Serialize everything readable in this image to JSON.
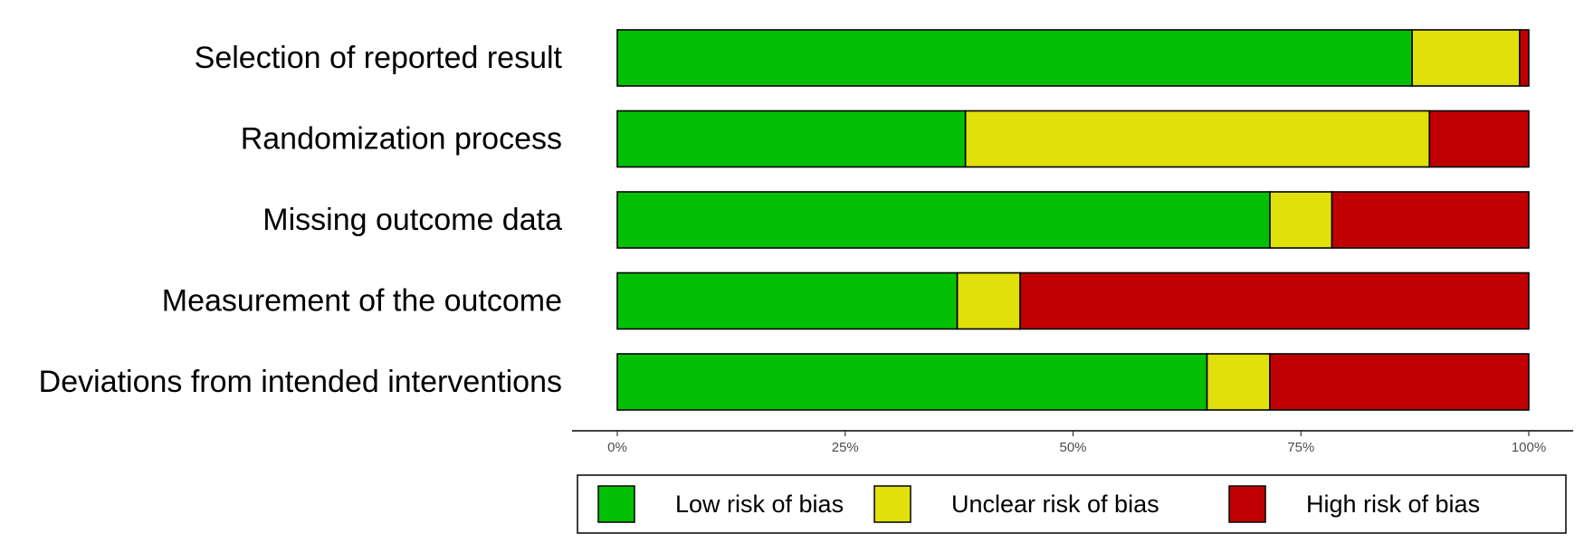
{
  "chart_data": {
    "type": "bar",
    "orientation": "horizontal",
    "stacked": true,
    "categories": [
      "Selection of reported result",
      "Randomization process",
      "Missing outcome data",
      "Measurement of the outcome",
      "Deviations from intended interventions"
    ],
    "series": [
      {
        "name": "Low risk of bias",
        "color": "#04c004",
        "values": [
          87.2,
          38.2,
          71.6,
          37.3,
          64.7
        ]
      },
      {
        "name": "Unclear risk of bias",
        "color": "#e0e00a",
        "values": [
          11.8,
          50.9,
          6.8,
          6.9,
          6.9
        ]
      },
      {
        "name": "High risk of bias",
        "color": "#c00000",
        "values": [
          1.0,
          10.9,
          21.6,
          55.8,
          28.4
        ]
      }
    ],
    "xlim": [
      0,
      100
    ],
    "xticks": [
      "0%",
      "25%",
      "50%",
      "75%",
      "100%"
    ],
    "grid": false,
    "legend_position": "bottom"
  }
}
